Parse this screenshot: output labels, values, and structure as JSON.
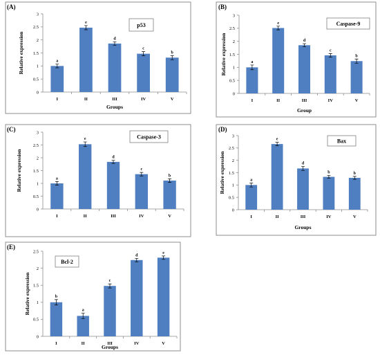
{
  "bar_color": "#4f7fc0",
  "chart_data": [
    {
      "panel": "(A)",
      "type": "bar",
      "title": "p53",
      "categories": [
        "I",
        "II",
        "III",
        "IV",
        "V"
      ],
      "values": [
        1.0,
        2.47,
        1.86,
        1.47,
        1.32
      ],
      "errors": [
        0.07,
        0.08,
        0.07,
        0.08,
        0.08
      ],
      "letters": [
        "a",
        "e",
        "d",
        "c",
        "b"
      ],
      "xlabel": "Groups",
      "ylabel": "Relative expression",
      "ylim": [
        0,
        3
      ],
      "yticks": [
        "0",
        "0.5",
        "1",
        "1.5",
        "2",
        "2.5",
        "3"
      ]
    },
    {
      "panel": "(B)",
      "type": "bar",
      "title": "Caspase-9",
      "categories": [
        "I",
        "II",
        "III",
        "IV",
        "V"
      ],
      "values": [
        1.0,
        2.51,
        1.85,
        1.46,
        1.24
      ],
      "errors": [
        0.09,
        0.07,
        0.06,
        0.07,
        0.08
      ],
      "letters": [
        "a",
        "e",
        "d",
        "c",
        "b"
      ],
      "xlabel": "Group",
      "ylabel": "Relative expression",
      "ylim": [
        0,
        3
      ],
      "yticks": [
        "0",
        "0.5",
        "1",
        "1.5",
        "2",
        "2.5",
        "3"
      ]
    },
    {
      "panel": "(C)",
      "type": "bar",
      "title": "Caspase-3",
      "categories": [
        "I",
        "II",
        "III",
        "IV",
        "V"
      ],
      "values": [
        1.0,
        2.53,
        1.84,
        1.36,
        1.11
      ],
      "errors": [
        0.07,
        0.09,
        0.06,
        0.07,
        0.07
      ],
      "letters": [
        "a",
        "e",
        "d",
        "c",
        "b"
      ],
      "xlabel": "",
      "ylabel": "Relative expression",
      "ylim": [
        0,
        3
      ],
      "yticks": [
        "0",
        "0.5",
        "1",
        "1.5",
        "2",
        "2.5",
        "3"
      ]
    },
    {
      "panel": "(D)",
      "type": "bar",
      "title": "Bax",
      "categories": [
        "I",
        "II",
        "III",
        "IV",
        "V"
      ],
      "values": [
        1.0,
        2.66,
        1.67,
        1.33,
        1.29
      ],
      "errors": [
        0.08,
        0.07,
        0.08,
        0.06,
        0.06
      ],
      "letters": [
        "a",
        "e",
        "d",
        "b",
        "b"
      ],
      "xlabel": "Groups",
      "ylabel": "Relative expression",
      "ylim": [
        0,
        3
      ],
      "yticks": [
        "0",
        "0.5",
        "1",
        "1.5",
        "2",
        "2.5",
        "3"
      ]
    },
    {
      "panel": "(E)",
      "type": "bar",
      "title": "Bcl-2",
      "categories": [
        "I",
        "II",
        "III",
        "IV",
        "V"
      ],
      "values": [
        1.0,
        0.6,
        1.48,
        2.24,
        2.31
      ],
      "errors": [
        0.08,
        0.08,
        0.06,
        0.05,
        0.05
      ],
      "letters": [
        "b",
        "a",
        "c",
        "d",
        "e"
      ],
      "xlabel": "Groups",
      "ylabel": "Relative expression",
      "ylim": [
        0,
        2.5
      ],
      "yticks": [
        "0",
        "0.5",
        "1",
        "1.5",
        "2",
        "2.5"
      ]
    }
  ]
}
